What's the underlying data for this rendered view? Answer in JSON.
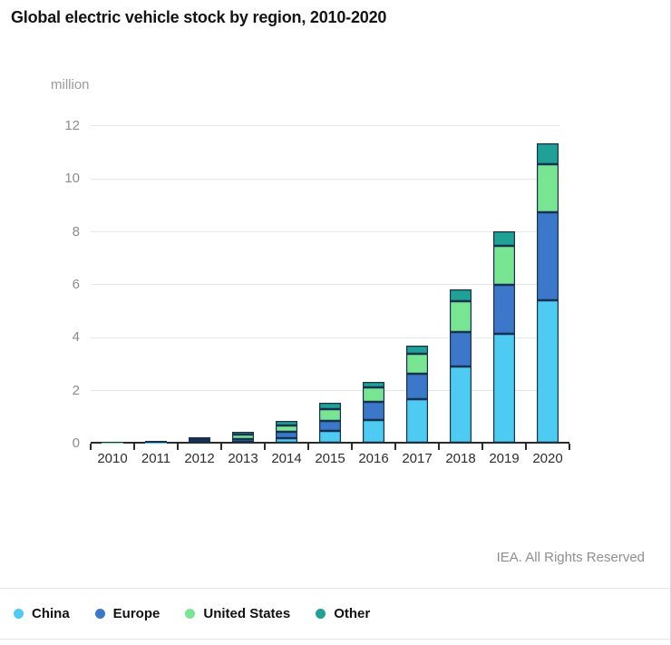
{
  "title": "Global electric vehicle stock by region, 2010-2020",
  "credit": "IEA. All Rights Reserved",
  "chart_data": {
    "type": "bar",
    "stacked": true,
    "title": "Global electric vehicle stock by region, 2010-2020",
    "unit_label": "million",
    "xlabel": "",
    "ylabel": "million",
    "categories": [
      "2010",
      "2011",
      "2012",
      "2013",
      "2014",
      "2015",
      "2016",
      "2017",
      "2018",
      "2019",
      "2020"
    ],
    "series": [
      {
        "name": "China",
        "color": "#4dcbf2",
        "values": [
          0,
          0.01,
          0.02,
          0.03,
          0.16,
          0.45,
          0.87,
          1.63,
          2.87,
          4.1,
          5.4
        ]
      },
      {
        "name": "Europe",
        "color": "#3c78c9",
        "values": [
          0,
          0.01,
          0.04,
          0.12,
          0.24,
          0.38,
          0.66,
          0.97,
          1.3,
          1.85,
          3.3
        ]
      },
      {
        "name": "United States",
        "color": "#78e593",
        "values": [
          0.01,
          0.02,
          0.07,
          0.15,
          0.24,
          0.45,
          0.55,
          0.75,
          1.18,
          1.5,
          1.82
        ]
      },
      {
        "name": "Other",
        "color": "#1fa195",
        "values": [
          0.01,
          0.02,
          0.07,
          0.1,
          0.17,
          0.22,
          0.22,
          0.33,
          0.46,
          0.55,
          0.8
        ]
      }
    ],
    "totals": [
      0.02,
      0.06,
      0.2,
      0.4,
      0.81,
      1.5,
      2.3,
      3.68,
      5.81,
      8.0,
      11.32
    ],
    "ylim": [
      0,
      12
    ],
    "yticks": [
      0,
      2,
      4,
      6,
      8,
      10,
      12
    ],
    "grid": true,
    "legend_position": "bottom",
    "segment_outline_color": "#16324e",
    "axis_color": "#2b2b2b",
    "gridline_color": "#e7e7e7"
  }
}
